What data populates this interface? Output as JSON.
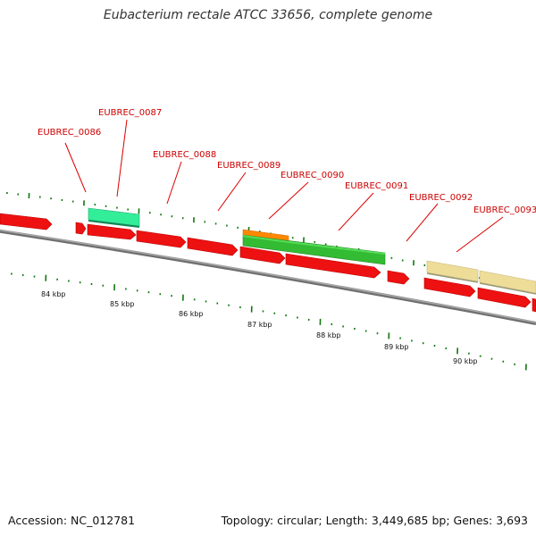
{
  "title": "Eubacterium rectale ATCC 33656, complete genome",
  "footer": {
    "accession": "Accession: NC_012781",
    "summary": "Topology: circular; Length: 3,449,685 bp; Genes: 3,693"
  },
  "colors": {
    "gene_red": "#ee1111",
    "gene_teal": "#33ee99",
    "gene_green": "#33bb33",
    "gene_orange": "#ff8800",
    "gene_cream": "#eedd99",
    "backbone": "#888888",
    "tick_green": "#117711",
    "label_red": "#cc0000"
  },
  "gene_labels": [
    "EUBREC_0086",
    "EUBREC_0087",
    "EUBREC_0088",
    "EUBREC_0089",
    "EUBREC_0090",
    "EUBREC_0091",
    "EUBREC_0092",
    "EUBREC_0093"
  ],
  "scale_labels": [
    "84 kbp",
    "85 kbp",
    "86 kbp",
    "87 kbp",
    "88 kbp",
    "89 kbp",
    "90 kbp"
  ]
}
